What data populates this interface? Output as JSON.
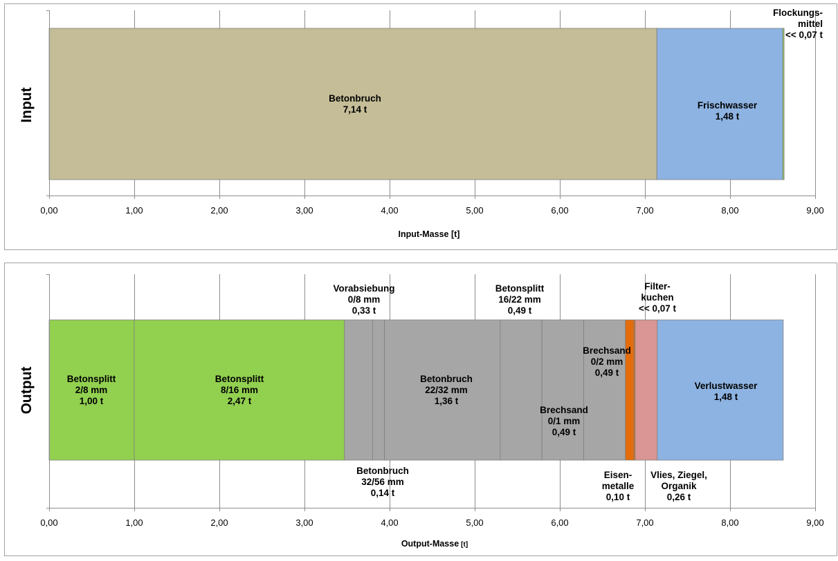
{
  "chart_data": [
    {
      "type": "bar",
      "orientation": "horizontal-stacked",
      "row_label": "Input",
      "xlabel": "Input-Masse [t]",
      "xlim": [
        0,
        9
      ],
      "tick_labels": [
        "0,00",
        "1,00",
        "2,00",
        "3,00",
        "4,00",
        "5,00",
        "6,00",
        "7,00",
        "8,00",
        "9,00"
      ],
      "grid": true,
      "colors": {
        "tan": "#c4bd97",
        "blue": "#8db3e2",
        "lime": "#92d050"
      },
      "segments": [
        {
          "name": "Betonbruch",
          "value": 7.14,
          "color": "#c4bd97",
          "label_lines": [
            "Betonbruch",
            "7,14 t"
          ]
        },
        {
          "name": "Frischwasser",
          "value": 1.48,
          "color": "#8db3e2",
          "label_lines": [
            "Frischwasser",
            "1,48 t"
          ]
        },
        {
          "name": "Flockungsmittel",
          "value": 0.015,
          "color": "#92d050",
          "label_lines": [
            "Flockungs-",
            "mittel",
            "<< 0,07 t"
          ]
        }
      ]
    },
    {
      "type": "bar",
      "orientation": "horizontal-stacked",
      "row_label": "Output",
      "xlabel": "Output-Masse",
      "xlabel_unit": "[t]",
      "xlim": [
        0,
        9
      ],
      "tick_labels": [
        "0,00",
        "1,00",
        "2,00",
        "3,00",
        "4,00",
        "5,00",
        "6,00",
        "7,00",
        "8,00",
        "9,00"
      ],
      "grid": true,
      "colors": {
        "green": "#92d050",
        "gray": "#a6a6a6",
        "orange": "#e46c0a",
        "pink": "#d99694",
        "blue": "#8db3e2"
      },
      "segments": [
        {
          "name": "Betonsplitt 2/8 mm",
          "value": 1.0,
          "color": "#92d050",
          "label_lines": [
            "Betonsplitt",
            "2/8 mm",
            "1,00 t"
          ]
        },
        {
          "name": "Betonsplitt 8/16 mm",
          "value": 2.47,
          "color": "#92d050",
          "label_lines": [
            "Betonsplitt",
            "8/16 mm",
            "2,47 t"
          ]
        },
        {
          "name": "Vorabsiebung 0/8 mm",
          "value": 0.33,
          "color": "#a6a6a6",
          "label_lines": [
            "Vorabsiebung",
            "0/8 mm",
            "0,33 t"
          ]
        },
        {
          "name": "Betonbruch 32/56 mm",
          "value": 0.14,
          "color": "#a6a6a6",
          "label_lines": [
            "Betonbruch",
            "32/56 mm",
            "0,14 t"
          ]
        },
        {
          "name": "Betonbruch 22/32 mm",
          "value": 1.36,
          "color": "#a6a6a6",
          "label_lines": [
            "Betonbruch",
            "22/32 mm",
            "1,36 t"
          ]
        },
        {
          "name": "Betonsplitt 16/22 mm",
          "value": 0.49,
          "color": "#a6a6a6",
          "label_lines": [
            "Betonsplitt",
            "16/22 mm",
            "0,49 t"
          ]
        },
        {
          "name": "Brechsand 0/1 mm",
          "value": 0.49,
          "color": "#a6a6a6",
          "label_lines": [
            "Brechsand",
            "0/1 mm",
            "0,49 t"
          ]
        },
        {
          "name": "Brechsand 0/2 mm",
          "value": 0.49,
          "color": "#a6a6a6",
          "label_lines": [
            "Brechsand",
            "0/2 mm",
            "0,49 t"
          ]
        },
        {
          "name": "Eisenmetalle",
          "value": 0.1,
          "color": "#e46c0a",
          "label_lines": [
            "Eisen-",
            "metalle",
            "0,10 t"
          ]
        },
        {
          "name": "Filterkuchen",
          "value": 0.015,
          "color": "#e46c0a",
          "label_lines": [
            "Filter-",
            "kuchen",
            "<< 0,07 t"
          ]
        },
        {
          "name": "Vlies, Ziegel, Organik",
          "value": 0.26,
          "color": "#d99694",
          "label_lines": [
            "Vlies, Ziegel,",
            "Organik",
            "0,26 t"
          ]
        },
        {
          "name": "Verlustwasser",
          "value": 1.48,
          "color": "#8db3e2",
          "label_lines": [
            "Verlustwasser",
            "1,48 t"
          ]
        }
      ]
    }
  ]
}
